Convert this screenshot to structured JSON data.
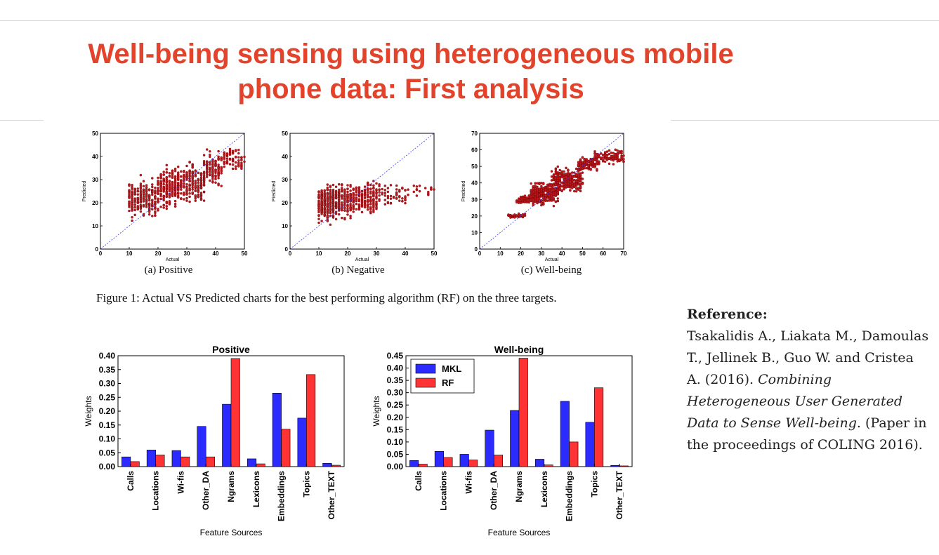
{
  "slide": {
    "title_line1": "Well-being sensing using heterogeneous mobile",
    "title_line2": "phone data: First analysis"
  },
  "figure1": {
    "caption": "Figure 1: Actual VS Predicted charts for the best performing algorithm (RF) on the three targets."
  },
  "reference": {
    "heading": "Reference:",
    "authors": "Tsakalidis A., Liakata M., Damoulas T., Jellinek B., Guo W. and Cristea A. (2016).",
    "paper_title": "Combining Heterogeneous User Generated Data to Sense Well-being",
    "venue": ". (Paper in the proceedings of COLING 2016)."
  },
  "chart_data": [
    {
      "type": "scatter",
      "caption": "(a) Positive",
      "xlabel": "Actual",
      "ylabel": "Predicted",
      "xlim": [
        0,
        50
      ],
      "ylim": [
        0,
        50
      ],
      "xticks": [
        0,
        10,
        20,
        30,
        40,
        50
      ],
      "yticks": [
        0,
        10,
        20,
        30,
        40,
        50
      ],
      "reference_line": "y = x (dashed blue)",
      "point_color": "#c0171d",
      "clusters": [
        {
          "x_range": [
            10,
            12
          ],
          "y_range": [
            10,
            32
          ],
          "n": 60
        },
        {
          "x_range": [
            12,
            20
          ],
          "y_range": [
            11,
            33
          ],
          "n": 160
        },
        {
          "x_range": [
            20,
            28
          ],
          "y_range": [
            15,
            38
          ],
          "n": 220
        },
        {
          "x_range": [
            28,
            36
          ],
          "y_range": [
            17,
            40
          ],
          "n": 170
        },
        {
          "x_range": [
            36,
            42
          ],
          "y_range": [
            24,
            44
          ],
          "n": 120
        },
        {
          "x_range": [
            42,
            50
          ],
          "y_range": [
            32,
            46
          ],
          "n": 70
        }
      ]
    },
    {
      "type": "scatter",
      "caption": "(b) Negative",
      "xlabel": "Actual",
      "ylabel": "Predicted",
      "xlim": [
        0,
        50
      ],
      "ylim": [
        0,
        50
      ],
      "xticks": [
        0,
        10,
        20,
        30,
        40,
        50
      ],
      "yticks": [
        0,
        10,
        20,
        30,
        40,
        50
      ],
      "reference_line": "y = x (dashed blue)",
      "point_color": "#c0171d",
      "clusters": [
        {
          "x_range": [
            10,
            14
          ],
          "y_range": [
            10,
            30
          ],
          "n": 200
        },
        {
          "x_range": [
            14,
            22
          ],
          "y_range": [
            11,
            31
          ],
          "n": 240
        },
        {
          "x_range": [
            22,
            30
          ],
          "y_range": [
            13,
            31
          ],
          "n": 160
        },
        {
          "x_range": [
            30,
            40
          ],
          "y_range": [
            17,
            30
          ],
          "n": 60
        },
        {
          "x_range": [
            40,
            50
          ],
          "y_range": [
            22,
            29
          ],
          "n": 20
        }
      ]
    },
    {
      "type": "scatter",
      "caption": "(c) Well-being",
      "xlabel": "Actual",
      "ylabel": "Predicted",
      "xlim": [
        0,
        70
      ],
      "ylim": [
        0,
        70
      ],
      "xticks": [
        0,
        10,
        20,
        30,
        40,
        50,
        60,
        70
      ],
      "yticks": [
        0,
        10,
        20,
        30,
        40,
        50,
        60,
        70
      ],
      "reference_line": "y = x (dashed blue)",
      "point_color": "#c0171d",
      "clusters": [
        {
          "x_range": [
            14,
            22
          ],
          "y_range": [
            18,
            22
          ],
          "n": 50
        },
        {
          "x_range": [
            18,
            28
          ],
          "y_range": [
            27,
            33
          ],
          "n": 120
        },
        {
          "x_range": [
            25,
            38
          ],
          "y_range": [
            25,
            42
          ],
          "n": 300
        },
        {
          "x_range": [
            35,
            50
          ],
          "y_range": [
            32,
            52
          ],
          "n": 280
        },
        {
          "x_range": [
            48,
            58
          ],
          "y_range": [
            46,
            57
          ],
          "n": 120
        },
        {
          "x_range": [
            56,
            70
          ],
          "y_range": [
            50,
            62
          ],
          "n": 100
        }
      ]
    },
    {
      "type": "bar",
      "title": "Positive",
      "xlabel": "Feature Sources",
      "ylabel": "Weights",
      "ylim": [
        0,
        0.4
      ],
      "yticks": [
        "0.00",
        "0.05",
        "0.10",
        "0.15",
        "0.20",
        "0.25",
        "0.30",
        "0.35",
        "0.40"
      ],
      "categories": [
        "Calls",
        "Locations",
        "Wi-fis",
        "Other_DA",
        "Ngrams",
        "Lexicons",
        "Embeddings",
        "Topics",
        "Other_TEXT"
      ],
      "series": [
        {
          "name": "MKL",
          "color": "#2b2bff",
          "values": [
            0.035,
            0.06,
            0.058,
            0.145,
            0.225,
            0.028,
            0.265,
            0.175,
            0.012
          ]
        },
        {
          "name": "RF",
          "color": "#ff3333",
          "values": [
            0.018,
            0.042,
            0.035,
            0.035,
            0.39,
            0.01,
            0.135,
            0.332,
            0.005
          ]
        }
      ]
    },
    {
      "type": "bar",
      "title": "Well-being",
      "xlabel": "Feature Sources",
      "ylabel": "Weights",
      "ylim": [
        0,
        0.45
      ],
      "yticks": [
        "0.00",
        "0.05",
        "0.10",
        "0.15",
        "0.20",
        "0.25",
        "0.30",
        "0.35",
        "0.40",
        "0.45"
      ],
      "categories": [
        "Calls",
        "Locations",
        "Wi-fis",
        "Other_DA",
        "Ngrams",
        "Lexicons",
        "Embeddings",
        "Topics",
        "Other_TEXT"
      ],
      "legend": {
        "position": "upper-left",
        "entries": [
          "MKL",
          "RF"
        ]
      },
      "series": [
        {
          "name": "MKL",
          "color": "#2b2bff",
          "values": [
            0.025,
            0.062,
            0.05,
            0.148,
            0.228,
            0.03,
            0.265,
            0.18,
            0.005
          ]
        },
        {
          "name": "RF",
          "color": "#ff3333",
          "values": [
            0.01,
            0.037,
            0.027,
            0.047,
            0.44,
            0.007,
            0.1,
            0.32,
            0.003
          ]
        }
      ]
    }
  ]
}
